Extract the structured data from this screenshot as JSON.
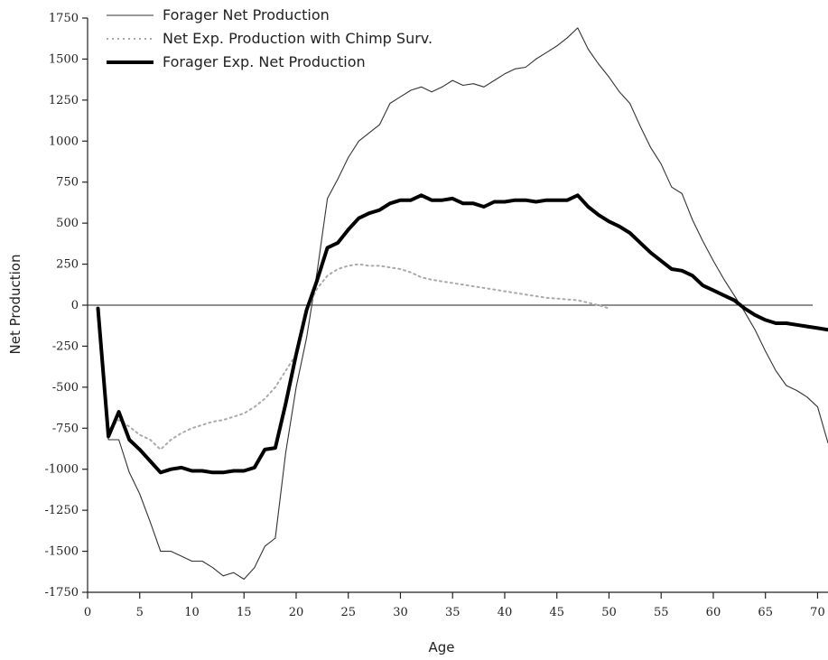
{
  "chart_data": {
    "type": "line",
    "title": "",
    "xlabel": "Age",
    "ylabel": "Net Production",
    "xlim": [
      0,
      71
    ],
    "ylim": [
      -1750,
      1750
    ],
    "xticks": [
      0,
      5,
      10,
      15,
      20,
      25,
      30,
      35,
      40,
      45,
      50,
      55,
      60,
      65,
      70
    ],
    "yticks": [
      1750,
      1500,
      1250,
      1000,
      750,
      500,
      250,
      0,
      -250,
      -500,
      -750,
      -1000,
      -1250,
      -1500,
      -1750
    ],
    "zero_line": true,
    "grid": false,
    "legend": "top-left",
    "series": [
      {
        "name": "Forager Net Production",
        "style": "thin",
        "color": "#333333",
        "points": [
          [
            1,
            -20
          ],
          [
            2,
            -820
          ],
          [
            3,
            -820
          ],
          [
            4,
            -1020
          ],
          [
            5,
            -1150
          ],
          [
            6,
            -1320
          ],
          [
            7,
            -1500
          ],
          [
            8,
            -1500
          ],
          [
            9,
            -1530
          ],
          [
            10,
            -1560
          ],
          [
            11,
            -1560
          ],
          [
            12,
            -1600
          ],
          [
            13,
            -1650
          ],
          [
            14,
            -1630
          ],
          [
            15,
            -1670
          ],
          [
            16,
            -1600
          ],
          [
            17,
            -1470
          ],
          [
            18,
            -1420
          ],
          [
            19,
            -900
          ],
          [
            20,
            -500
          ],
          [
            21,
            -200
          ],
          [
            22,
            200
          ],
          [
            23,
            650
          ],
          [
            24,
            770
          ],
          [
            25,
            900
          ],
          [
            26,
            1000
          ],
          [
            27,
            1050
          ],
          [
            28,
            1100
          ],
          [
            29,
            1230
          ],
          [
            30,
            1270
          ],
          [
            31,
            1310
          ],
          [
            32,
            1330
          ],
          [
            33,
            1300
          ],
          [
            34,
            1330
          ],
          [
            35,
            1370
          ],
          [
            36,
            1340
          ],
          [
            37,
            1350
          ],
          [
            38,
            1330
          ],
          [
            39,
            1370
          ],
          [
            40,
            1410
          ],
          [
            41,
            1440
          ],
          [
            42,
            1450
          ],
          [
            43,
            1500
          ],
          [
            44,
            1540
          ],
          [
            45,
            1580
          ],
          [
            46,
            1630
          ],
          [
            47,
            1690
          ],
          [
            48,
            1560
          ],
          [
            49,
            1470
          ],
          [
            50,
            1390
          ],
          [
            51,
            1300
          ],
          [
            52,
            1230
          ],
          [
            53,
            1090
          ],
          [
            54,
            960
          ],
          [
            55,
            860
          ],
          [
            56,
            720
          ],
          [
            57,
            680
          ],
          [
            58,
            520
          ],
          [
            59,
            390
          ],
          [
            60,
            270
          ],
          [
            61,
            160
          ],
          [
            62,
            60
          ],
          [
            63,
            -40
          ],
          [
            64,
            -150
          ],
          [
            65,
            -280
          ],
          [
            66,
            -400
          ],
          [
            67,
            -490
          ],
          [
            68,
            -520
          ],
          [
            69,
            -560
          ],
          [
            70,
            -620
          ],
          [
            71,
            -840
          ]
        ]
      },
      {
        "name": "Net Exp. Production with Chimp Surv.",
        "style": "dotted",
        "color": "#aaaaaa",
        "points": [
          [
            1,
            -20
          ],
          [
            2,
            -760
          ],
          [
            3,
            -700
          ],
          [
            4,
            -740
          ],
          [
            5,
            -790
          ],
          [
            6,
            -820
          ],
          [
            7,
            -880
          ],
          [
            8,
            -820
          ],
          [
            9,
            -780
          ],
          [
            10,
            -750
          ],
          [
            11,
            -730
          ],
          [
            12,
            -710
          ],
          [
            13,
            -700
          ],
          [
            14,
            -680
          ],
          [
            15,
            -660
          ],
          [
            16,
            -620
          ],
          [
            17,
            -570
          ],
          [
            18,
            -500
          ],
          [
            19,
            -400
          ],
          [
            20,
            -300
          ],
          [
            21,
            -30
          ],
          [
            22,
            100
          ],
          [
            23,
            180
          ],
          [
            24,
            220
          ],
          [
            25,
            240
          ],
          [
            26,
            250
          ],
          [
            27,
            240
          ],
          [
            28,
            240
          ],
          [
            29,
            230
          ],
          [
            30,
            220
          ],
          [
            31,
            200
          ],
          [
            32,
            170
          ],
          [
            33,
            155
          ],
          [
            34,
            145
          ],
          [
            35,
            135
          ],
          [
            36,
            125
          ],
          [
            37,
            115
          ],
          [
            38,
            105
          ],
          [
            39,
            95
          ],
          [
            40,
            85
          ],
          [
            41,
            75
          ],
          [
            42,
            65
          ],
          [
            43,
            55
          ],
          [
            44,
            45
          ],
          [
            45,
            40
          ],
          [
            46,
            35
          ],
          [
            47,
            30
          ],
          [
            48,
            15
          ],
          [
            49,
            0
          ],
          [
            50,
            -20
          ]
        ]
      },
      {
        "name": "Forager Exp. Net Production",
        "style": "thick",
        "color": "#000000",
        "points": [
          [
            1,
            -20
          ],
          [
            2,
            -800
          ],
          [
            3,
            -650
          ],
          [
            4,
            -820
          ],
          [
            5,
            -880
          ],
          [
            6,
            -950
          ],
          [
            7,
            -1020
          ],
          [
            8,
            -1000
          ],
          [
            9,
            -990
          ],
          [
            10,
            -1010
          ],
          [
            11,
            -1010
          ],
          [
            12,
            -1020
          ],
          [
            13,
            -1020
          ],
          [
            14,
            -1010
          ],
          [
            15,
            -1010
          ],
          [
            16,
            -990
          ],
          [
            17,
            -880
          ],
          [
            18,
            -870
          ],
          [
            19,
            -600
          ],
          [
            20,
            -300
          ],
          [
            21,
            -30
          ],
          [
            22,
            150
          ],
          [
            23,
            350
          ],
          [
            24,
            380
          ],
          [
            25,
            460
          ],
          [
            26,
            530
          ],
          [
            27,
            560
          ],
          [
            28,
            580
          ],
          [
            29,
            620
          ],
          [
            30,
            640
          ],
          [
            31,
            640
          ],
          [
            32,
            670
          ],
          [
            33,
            640
          ],
          [
            34,
            640
          ],
          [
            35,
            650
          ],
          [
            36,
            620
          ],
          [
            37,
            620
          ],
          [
            38,
            600
          ],
          [
            39,
            630
          ],
          [
            40,
            630
          ],
          [
            41,
            640
          ],
          [
            42,
            640
          ],
          [
            43,
            630
          ],
          [
            44,
            640
          ],
          [
            45,
            640
          ],
          [
            46,
            640
          ],
          [
            47,
            670
          ],
          [
            48,
            600
          ],
          [
            49,
            550
          ],
          [
            50,
            510
          ],
          [
            51,
            480
          ],
          [
            52,
            440
          ],
          [
            53,
            380
          ],
          [
            54,
            320
          ],
          [
            55,
            270
          ],
          [
            56,
            220
          ],
          [
            57,
            210
          ],
          [
            58,
            180
          ],
          [
            59,
            120
          ],
          [
            60,
            90
          ],
          [
            61,
            60
          ],
          [
            62,
            30
          ],
          [
            63,
            -20
          ],
          [
            64,
            -60
          ],
          [
            65,
            -90
          ],
          [
            66,
            -110
          ],
          [
            67,
            -110
          ],
          [
            68,
            -120
          ],
          [
            69,
            -130
          ],
          [
            70,
            -140
          ],
          [
            71,
            -150
          ]
        ]
      }
    ]
  }
}
